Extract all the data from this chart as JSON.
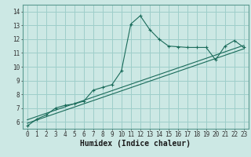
{
  "title": "",
  "xlabel": "Humidex (Indice chaleur)",
  "ylabel": "",
  "bg_color": "#cce8e4",
  "grid_color": "#9ececa",
  "line_color": "#1a6b5a",
  "xlim": [
    -0.5,
    23.5
  ],
  "ylim": [
    5.5,
    14.5
  ],
  "xticks": [
    0,
    1,
    2,
    3,
    4,
    5,
    6,
    7,
    8,
    9,
    10,
    11,
    12,
    13,
    14,
    15,
    16,
    17,
    18,
    19,
    20,
    21,
    22,
    23
  ],
  "yticks": [
    6,
    7,
    8,
    9,
    10,
    11,
    12,
    13,
    14
  ],
  "main_x": [
    0,
    1,
    2,
    3,
    4,
    5,
    6,
    7,
    8,
    9,
    10,
    11,
    12,
    13,
    14,
    15,
    16,
    17,
    18,
    19,
    20,
    21,
    22,
    23
  ],
  "main_y": [
    5.7,
    6.2,
    6.5,
    7.0,
    7.2,
    7.3,
    7.5,
    8.3,
    8.5,
    8.7,
    9.7,
    13.1,
    13.7,
    12.7,
    12.0,
    11.5,
    11.45,
    11.4,
    11.4,
    11.4,
    10.5,
    11.5,
    11.9,
    11.4
  ],
  "line1_x": [
    0,
    23
  ],
  "line1_y": [
    5.9,
    11.3
  ],
  "line2_x": [
    0,
    23
  ],
  "line2_y": [
    6.15,
    11.55
  ],
  "tick_fontsize": 5.5,
  "xlabel_fontsize": 7
}
